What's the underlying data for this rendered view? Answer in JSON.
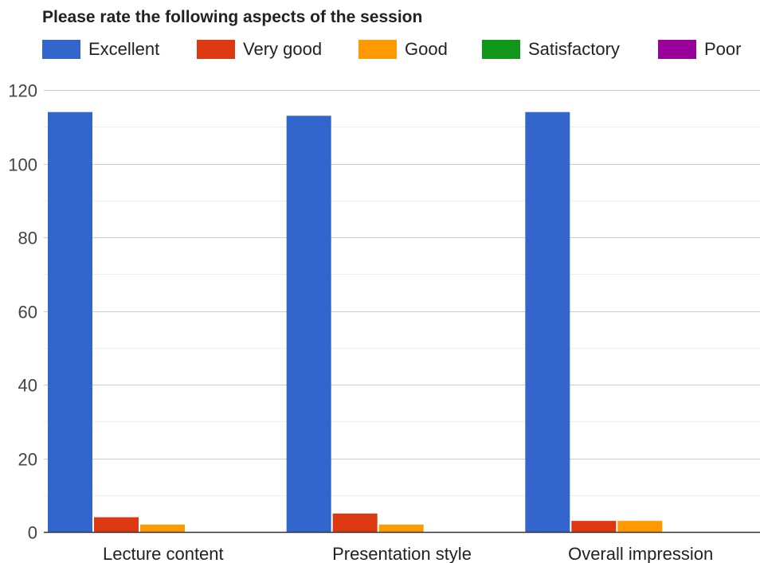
{
  "chart_data": {
    "type": "bar",
    "title": "Please rate the following aspects of the session",
    "xlabel": "",
    "ylabel": "",
    "categories": [
      "Lecture content",
      "Presentation style",
      "Overall impression"
    ],
    "series": [
      {
        "name": "Excellent",
        "color": "#3366cc",
        "values": [
          114,
          113,
          114
        ]
      },
      {
        "name": "Very good",
        "color": "#dc3912",
        "values": [
          4,
          5,
          3
        ]
      },
      {
        "name": "Good",
        "color": "#ff9900",
        "values": [
          2,
          2,
          3
        ]
      },
      {
        "name": "Satisfactory",
        "color": "#109618",
        "values": [
          0,
          0,
          0
        ]
      },
      {
        "name": "Poor",
        "color": "#990099",
        "values": [
          0,
          0,
          0
        ]
      }
    ],
    "ylim": [
      0,
      120
    ],
    "yticks": [
      0,
      20,
      40,
      60,
      80,
      100,
      120
    ],
    "grid": true,
    "legend_position": "top"
  }
}
